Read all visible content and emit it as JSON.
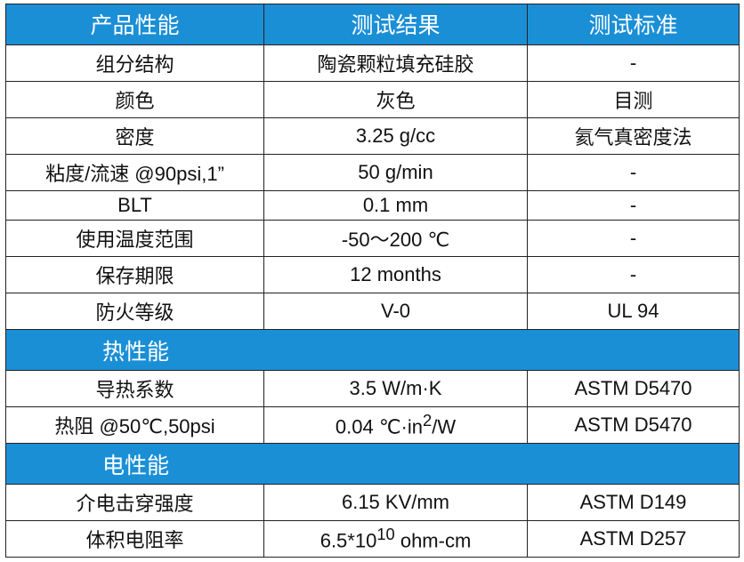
{
  "header": {
    "col1": "产品性能",
    "col2": "测试结果",
    "col3": "测试标准"
  },
  "rows_a": [
    {
      "property": "组分结构",
      "result": "陶瓷颗粒填充硅胶",
      "standard": "-"
    },
    {
      "property": "颜色",
      "result": "灰色",
      "standard": "目测"
    },
    {
      "property": "密度",
      "result": "3.25 g/cc",
      "standard": "氦气真密度法"
    },
    {
      "property": "粘度/流速  @90psi,1”",
      "result": "50 g/min",
      "standard": "-"
    },
    {
      "property": "BLT",
      "result": "0.1 mm",
      "standard": "-"
    },
    {
      "property": "使用温度范围",
      "result": "-50～200 ℃",
      "standard": "-"
    },
    {
      "property": "保存期限",
      "result": "12 months",
      "standard": "-"
    },
    {
      "property": "防火等级",
      "result": "V-0",
      "standard": "UL 94"
    }
  ],
  "section_thermal": "热性能",
  "rows_b": [
    {
      "property": "导热系数",
      "result": "3.5 W/m·K",
      "standard": "ASTM D5470"
    },
    {
      "property": "热阻  @50℃,50psi",
      "result_base": "0.04 ℃·in",
      "result_sup": "2",
      "result_tail": "/W",
      "standard": "ASTM D5470"
    }
  ],
  "section_electrical": "电性能",
  "rows_c": [
    {
      "property": "介电击穿强度",
      "result": "6.15 KV/mm",
      "standard": "ASTM D149"
    },
    {
      "property": "体积电阻率",
      "result_base": "6.5*10",
      "result_sup": "10",
      "result_tail": " ohm-cm",
      "standard": "ASTM D257"
    }
  ]
}
